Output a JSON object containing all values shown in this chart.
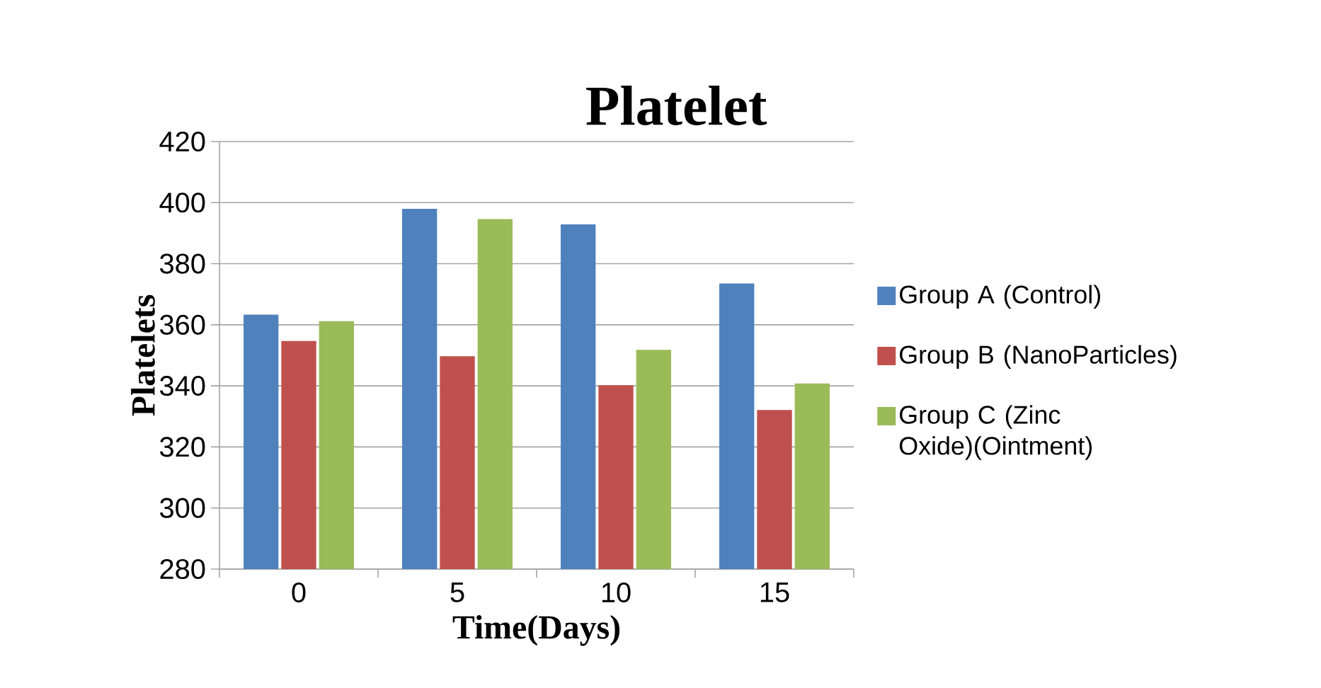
{
  "chart_data": {
    "type": "bar",
    "title": "Platelet",
    "xlabel": "Time(Days)",
    "ylabel": "Platelets",
    "categories": [
      "0",
      "5",
      "10",
      "15"
    ],
    "series": [
      {
        "name": "Group A (Control)",
        "color": "#4f81bd",
        "values": [
          363.3,
          398,
          392.9,
          373.5
        ]
      },
      {
        "name": "Group B (NanoParticles)",
        "color": "#c0504d",
        "values": [
          354.7,
          349.7,
          340.2,
          332.1
        ]
      },
      {
        "name": "Group C (Zinc Oxide)(Ointment)",
        "color": "#9bbb59",
        "values": [
          361.2,
          394.6,
          351.8,
          340.8
        ]
      }
    ],
    "ylim": [
      280,
      420
    ],
    "yticks": [
      280,
      300,
      320,
      340,
      360,
      380,
      400,
      420
    ],
    "grid": "y",
    "legend": "right"
  }
}
